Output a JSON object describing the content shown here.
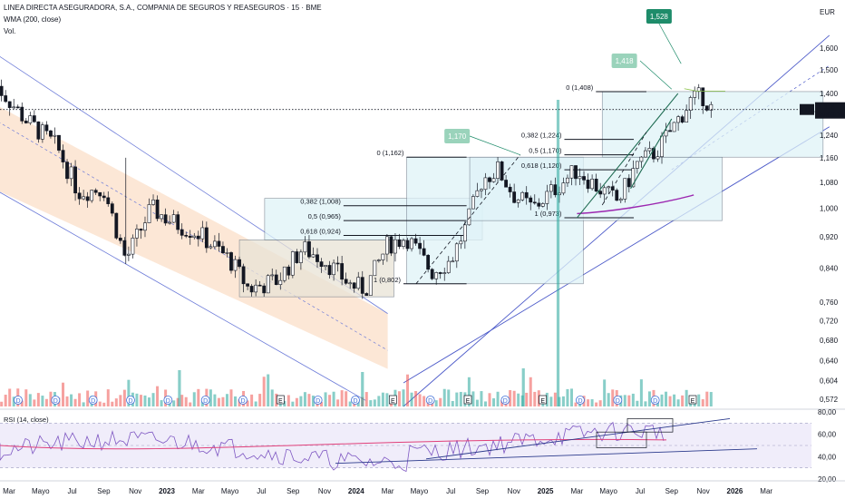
{
  "header": {
    "title": "LINEA DIRECTA ASEGURADORA, S.A., COMPANIA DE SEGUROS Y REASEGUROS · 15 · BME",
    "indicator": "WMA (200, close)",
    "volume": "Vol."
  },
  "currency": "EUR",
  "symbol_tag": "LDA",
  "last_price": "1,336",
  "countdown": "09:03:19",
  "rsi_label": "RSI (14, close)",
  "colors": {
    "up": "#26a69a",
    "down": "#ef5350",
    "candle": "#131722",
    "channel_fill": "#fce3cf",
    "box_fill": "#dff3f8",
    "trend_line": "#1e6b52",
    "wma": "#9c27b0",
    "rsi": "#7e57c2",
    "rsi_bg": "#f0edfa",
    "callout": "#1e8c6a"
  },
  "chart_data": {
    "type": "candlestick",
    "price_axis": {
      "scale": "log",
      "range": [
        0.56,
        1.7
      ],
      "ticks": [
        "1,600",
        "1,500",
        "1,400",
        "1,240",
        "1,160",
        "1,080",
        "1,000",
        "0,920",
        "0,840",
        "0,760",
        "0,720",
        "0,680",
        "0,640",
        "0,604",
        "0,572"
      ]
    },
    "rsi_axis": {
      "range": [
        20,
        80
      ],
      "ticks": [
        "80,00",
        "60,00",
        "40,00",
        "20,00"
      ],
      "bands": [
        30,
        70
      ]
    },
    "time_axis": {
      "labels": [
        "Mar",
        "Mayo",
        "Jul",
        "Sep",
        "Nov",
        "2023",
        "Mar",
        "Mayo",
        "Jul",
        "Sep",
        "Nov",
        "2024",
        "Mar",
        "Mayo",
        "Jul",
        "Sep",
        "Nov",
        "2025",
        "Mar",
        "Mayo",
        "Jul",
        "Sep",
        "Nov",
        "2026",
        "Mar"
      ]
    },
    "current_price": 1.336,
    "fib_levels": [
      {
        "label": "0 (1,162)",
        "value": 1.162
      },
      {
        "label": "0,382 (1,008)",
        "value": 1.008
      },
      {
        "label": "0,5 (0,965)",
        "value": 0.965
      },
      {
        "label": "0,618 (0,924)",
        "value": 0.924
      },
      {
        "label": "1 (0,802)",
        "value": 0.802
      },
      {
        "label": "0 (1,408)",
        "value": 1.408
      },
      {
        "label": "0,382 (1,224)",
        "value": 1.224
      },
      {
        "label": "0,5 (1,170)",
        "value": 1.17
      },
      {
        "label": "0,618 (1,120)",
        "value": 1.12
      },
      {
        "label": "1 (0,973)",
        "value": 0.973
      }
    ],
    "callouts": [
      {
        "label": "1,528",
        "value": 1.528
      },
      {
        "label": "1,418",
        "value": 1.418
      },
      {
        "label": "1,170",
        "value": 1.17
      }
    ],
    "events": [
      "D",
      "D",
      "D",
      "D",
      "D",
      "D",
      "D",
      "E",
      "D",
      "D",
      "E",
      "D",
      "E",
      "D",
      "E",
      "D",
      "D",
      "D",
      "E"
    ]
  }
}
